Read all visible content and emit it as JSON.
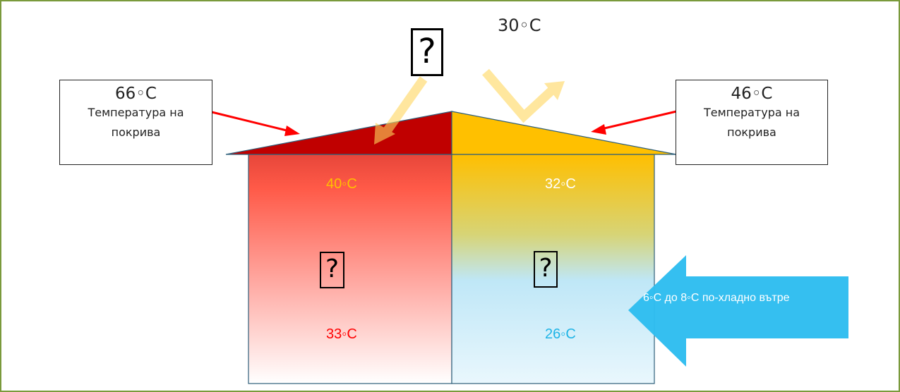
{
  "ambient": {
    "label": "30◦C"
  },
  "left_roof": {
    "temp": "66◦C",
    "caption": "Температура на\nпокрива",
    "line1": "Температура на",
    "line2": "покрива"
  },
  "right_roof": {
    "temp": "46◦C",
    "line1": "Температура на",
    "line2": "покрива"
  },
  "left_room": {
    "top_temp": "40◦C",
    "bottom_temp": "33◦C",
    "top_color": "#ffc000",
    "bottom_color": "#ff0000"
  },
  "right_room": {
    "top_temp": "32◦C",
    "bottom_temp": "26◦C",
    "top_color": "#ffffff",
    "bottom_color": "#1eb4e6"
  },
  "arrow_label": "6◦C до 8◦C по-хладно вътре",
  "icons": {
    "sun": "?",
    "left_room_icon": "?",
    "right_room_icon": "?"
  },
  "colors": {
    "dark_red_roof": "#c00000",
    "yellow_roof": "#ffc000",
    "blue_arrow": "#2ebdf0",
    "red_arrow": "#ff0000"
  }
}
